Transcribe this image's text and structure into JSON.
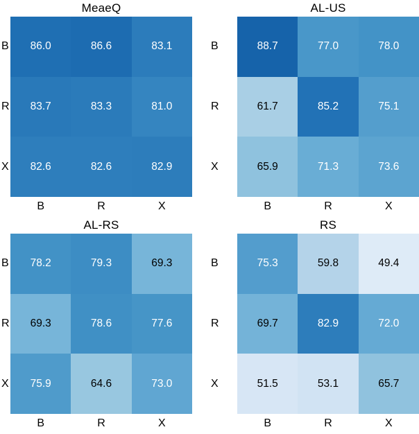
{
  "figure": {
    "background": "#ffffff",
    "label_color": "#000000"
  },
  "chart_data": {
    "type": "heatmap",
    "layout": "2x2 grid of 3x3 annotated heatmaps",
    "grid": false,
    "colorbar": false,
    "colormap": {
      "name": "Blues",
      "vmin": 42,
      "vmax": 100,
      "anchors": [
        {
          "t": 0.0,
          "color": "#f7fbff"
        },
        {
          "t": 0.125,
          "color": "#deebf7"
        },
        {
          "t": 0.25,
          "color": "#c6dbef"
        },
        {
          "t": 0.375,
          "color": "#9ecae1"
        },
        {
          "t": 0.5,
          "color": "#6baed6"
        },
        {
          "t": 0.625,
          "color": "#4292c6"
        },
        {
          "t": 0.75,
          "color": "#2171b5"
        },
        {
          "t": 0.875,
          "color": "#08519c"
        },
        {
          "t": 1.0,
          "color": "#08306b"
        }
      ]
    },
    "annotation_light_color": "#ffffff",
    "annotation_dark_color": "#000000",
    "white_text_min_value": 70.4,
    "panels": [
      {
        "title": "MeaeQ",
        "row_labels": [
          "B",
          "R",
          "X"
        ],
        "col_labels": [
          "B",
          "R",
          "X"
        ],
        "values": [
          [
            "86.0",
            "86.6",
            "83.1"
          ],
          [
            "83.7",
            "83.3",
            "81.0"
          ],
          [
            "82.6",
            "82.6",
            "82.9"
          ]
        ]
      },
      {
        "title": "AL-US",
        "row_labels": [
          "B",
          "R",
          "X"
        ],
        "col_labels": [
          "B",
          "R",
          "X"
        ],
        "values": [
          [
            "88.7",
            "77.0",
            "78.0"
          ],
          [
            "61.7",
            "85.2",
            "75.1"
          ],
          [
            "65.9",
            "71.3",
            "73.6"
          ]
        ]
      },
      {
        "title": "AL-RS",
        "row_labels": [
          "B",
          "R",
          "X"
        ],
        "col_labels": [
          "B",
          "R",
          "X"
        ],
        "values": [
          [
            "78.2",
            "79.3",
            "69.3"
          ],
          [
            "69.3",
            "78.6",
            "77.6"
          ],
          [
            "75.9",
            "64.6",
            "73.0"
          ]
        ]
      },
      {
        "title": "RS",
        "row_labels": [
          "B",
          "R",
          "X"
        ],
        "col_labels": [
          "B",
          "R",
          "X"
        ],
        "values": [
          [
            "75.3",
            "59.8",
            "49.4"
          ],
          [
            "69.7",
            "82.9",
            "72.0"
          ],
          [
            "51.5",
            "53.1",
            "65.7"
          ]
        ]
      }
    ]
  }
}
